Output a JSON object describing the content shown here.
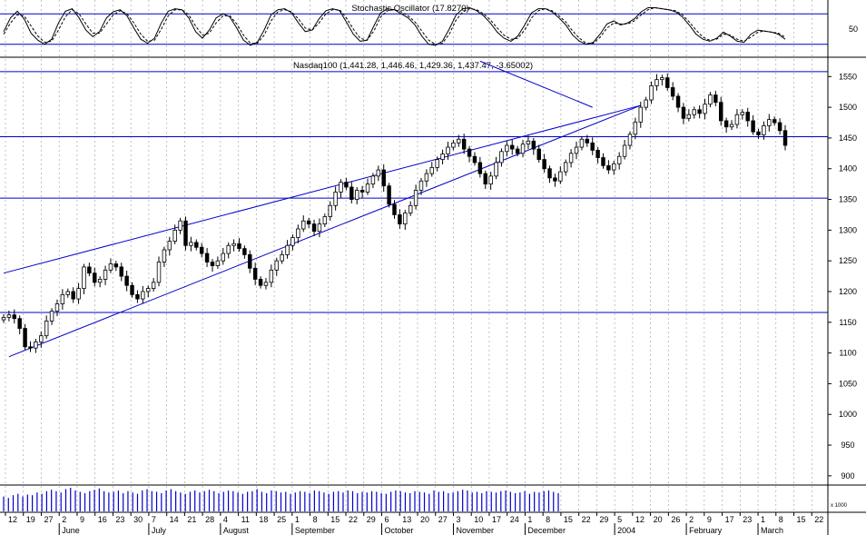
{
  "chart_data": [
    {
      "type": "line",
      "panel": "oscillator",
      "title": "Stochastic Oscillator (17.8270)",
      "y_tick_labels": [
        "50"
      ],
      "reference_levels": [
        80,
        20
      ],
      "ylim": [
        0,
        100
      ],
      "grid": "vertical dashed",
      "series": [
        {
          "style": "solid",
          "values": [
            45,
            72,
            85,
            70,
            42,
            28,
            20,
            30,
            62,
            85,
            90,
            72,
            48,
            35,
            45,
            72,
            84,
            88,
            76,
            52,
            30,
            22,
            32,
            62,
            85,
            90,
            88,
            72,
            45,
            32,
            48,
            72,
            80,
            74,
            52,
            28,
            18,
            24,
            48,
            78,
            88,
            90,
            82,
            62,
            45,
            48,
            70,
            86,
            90,
            86,
            64,
            40,
            26,
            28,
            56,
            82,
            90,
            88,
            80,
            72,
            58,
            36,
            20,
            18,
            26,
            50,
            78,
            90,
            92,
            86,
            76,
            62,
            44,
            32,
            26,
            36,
            58,
            82,
            90,
            90,
            84,
            72,
            58,
            38,
            26,
            20,
            24,
            40,
            60,
            66,
            58,
            62,
            70,
            84,
            92,
            92,
            90,
            88,
            84,
            74,
            58,
            40,
            30,
            26,
            32,
            44,
            36,
            26,
            24,
            40,
            48,
            46,
            44,
            40,
            30
          ]
        },
        {
          "style": "dashed",
          "values": [
            40,
            62,
            78,
            76,
            56,
            36,
            24,
            26,
            48,
            74,
            88,
            80,
            60,
            42,
            42,
            60,
            78,
            86,
            80,
            62,
            40,
            26,
            28,
            50,
            76,
            88,
            88,
            78,
            56,
            38,
            42,
            62,
            76,
            76,
            60,
            38,
            22,
            22,
            38,
            66,
            84,
            88,
            84,
            70,
            52,
            48,
            62,
            80,
            88,
            88,
            72,
            50,
            32,
            28,
            46,
            74,
            86,
            88,
            84,
            76,
            64,
            46,
            28,
            20,
            22,
            40,
            68,
            84,
            90,
            88,
            80,
            68,
            52,
            38,
            30,
            32,
            48,
            72,
            86,
            90,
            86,
            76,
            64,
            46,
            32,
            22,
            22,
            34,
            52,
            62,
            60,
            60,
            66,
            78,
            88,
            92,
            90,
            88,
            86,
            78,
            64,
            48,
            34,
            28,
            30,
            40,
            38,
            30,
            26,
            34,
            44,
            46,
            44,
            42,
            34
          ]
        }
      ]
    },
    {
      "type": "candlestick",
      "panel": "price",
      "title": "Nasdaq100 (1,441.28, 1,446.46, 1,429.36, 1,437.47, -3.65002)",
      "y_tick_labels": [
        "1550",
        "1500",
        "1450",
        "1400",
        "1350",
        "1300",
        "1250",
        "1200",
        "1150",
        "1100",
        "1050",
        "1000",
        "950",
        "900"
      ],
      "ylim": [
        885,
        1580
      ],
      "grid": "vertical dashed",
      "horizontal_levels": [
        1558,
        1452,
        1352,
        1166
      ],
      "trendlines": [
        {
          "from": [
            0,
            1230
          ],
          "to": [
            119,
            1503
          ]
        },
        {
          "from": [
            1,
            1094
          ],
          "to": [
            119,
            1503
          ]
        },
        {
          "from": [
            89,
            1575
          ],
          "to": [
            110,
            1500
          ]
        }
      ],
      "closes": [
        1158,
        1162,
        1156,
        1140,
        1110,
        1108,
        1118,
        1128,
        1152,
        1168,
        1180,
        1195,
        1200,
        1188,
        1205,
        1240,
        1230,
        1215,
        1220,
        1235,
        1245,
        1240,
        1225,
        1210,
        1195,
        1188,
        1200,
        1205,
        1215,
        1248,
        1268,
        1282,
        1300,
        1315,
        1275,
        1280,
        1272,
        1262,
        1248,
        1242,
        1250,
        1262,
        1275,
        1278,
        1270,
        1260,
        1238,
        1220,
        1210,
        1215,
        1235,
        1250,
        1260,
        1275,
        1288,
        1302,
        1315,
        1310,
        1298,
        1310,
        1322,
        1340,
        1362,
        1378,
        1370,
        1350,
        1365,
        1362,
        1375,
        1388,
        1398,
        1372,
        1342,
        1325,
        1310,
        1328,
        1340,
        1365,
        1380,
        1392,
        1402,
        1415,
        1424,
        1435,
        1442,
        1448,
        1432,
        1420,
        1410,
        1392,
        1375,
        1388,
        1410,
        1428,
        1438,
        1432,
        1425,
        1440,
        1445,
        1432,
        1415,
        1400,
        1385,
        1380,
        1395,
        1410,
        1425,
        1435,
        1448,
        1442,
        1430,
        1418,
        1405,
        1398,
        1408,
        1420,
        1438,
        1456,
        1476,
        1500,
        1512,
        1535,
        1545,
        1548,
        1532,
        1518,
        1500,
        1482,
        1488,
        1496,
        1490,
        1505,
        1520,
        1508,
        1478,
        1468,
        1472,
        1488,
        1492,
        1478,
        1460,
        1455,
        1470,
        1480,
        1475,
        1462,
        1438
      ],
      "volume": [
        22,
        20,
        24,
        26,
        22,
        25,
        24,
        28,
        26,
        30,
        32,
        30,
        28,
        33,
        35,
        31,
        29,
        27,
        30,
        32,
        34,
        30,
        28,
        29,
        31,
        27,
        30,
        28,
        26,
        31,
        33,
        30,
        29,
        27,
        31,
        33,
        30,
        28,
        26,
        29,
        31,
        28,
        30,
        32,
        30,
        27,
        29,
        31,
        30,
        28,
        26,
        29,
        30,
        33,
        29,
        27,
        31,
        30,
        28,
        29,
        26,
        28,
        30,
        29,
        27,
        31,
        30,
        28,
        26,
        29,
        30,
        28,
        31,
        30,
        27,
        29,
        28,
        30,
        29,
        27,
        26,
        29,
        31,
        30,
        28,
        27,
        30,
        29,
        28,
        26,
        31,
        29,
        30,
        27,
        28,
        30,
        32,
        31,
        28,
        29,
        27,
        30,
        29,
        28,
        30,
        31,
        29,
        27,
        28,
        30,
        26,
        29,
        28,
        30,
        31,
        29,
        27
      ]
    }
  ],
  "x_axis": {
    "day_ticks": [
      "12",
      "19",
      "27",
      "2",
      "9",
      "16",
      "23",
      "30",
      "7",
      "14",
      "21",
      "28",
      "4",
      "11",
      "18",
      "25",
      "1",
      "8",
      "15",
      "22",
      "29",
      "6",
      "13",
      "20",
      "27",
      "3",
      "10",
      "17",
      "24",
      "1",
      "8",
      "15",
      "22",
      "29",
      "5",
      "12",
      "20",
      "26",
      "2",
      "9",
      "17",
      "23",
      "1",
      "8",
      "15",
      "22"
    ],
    "month_labels": [
      "June",
      "July",
      "August",
      "September",
      "October",
      "November",
      "December",
      "2004",
      "February",
      "March"
    ]
  },
  "volume_axis_label": "x 1000",
  "colors": {
    "lines": "#0000cc",
    "candles": "#000000",
    "volume": "#0000cc",
    "grid": "#999999"
  }
}
